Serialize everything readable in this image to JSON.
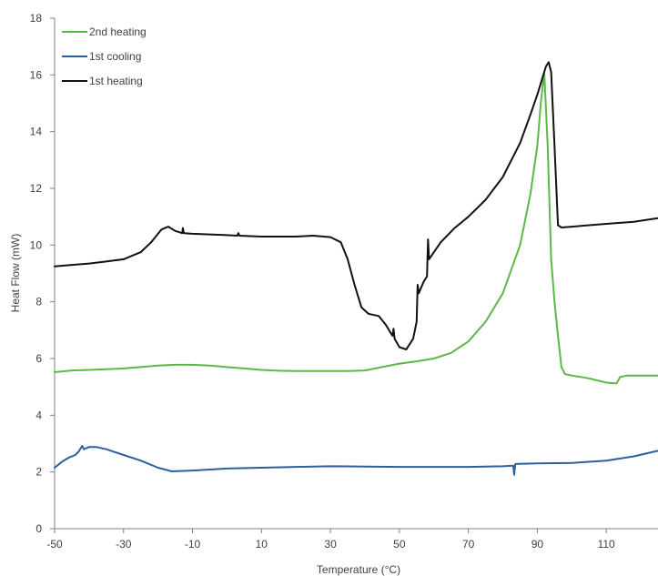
{
  "chart_data": {
    "type": "line",
    "xlabel": "Temperature (°C)",
    "ylabel": "Heat Flow (mW)",
    "xlim": [
      -50,
      125
    ],
    "ylim": [
      0,
      18
    ],
    "x_ticks": [
      -50,
      -30,
      -10,
      10,
      30,
      50,
      70,
      90,
      110
    ],
    "y_ticks": [
      0,
      2,
      4,
      6,
      8,
      10,
      12,
      14,
      16,
      18
    ],
    "grid": false,
    "legend_position": "top-left",
    "series": [
      {
        "name": "2nd heating",
        "color": "#5cb848",
        "points": [
          [
            -50,
            5.52
          ],
          [
            -45,
            5.58
          ],
          [
            -40,
            5.6
          ],
          [
            -35,
            5.62
          ],
          [
            -30,
            5.65
          ],
          [
            -25,
            5.7
          ],
          [
            -20,
            5.75
          ],
          [
            -15,
            5.78
          ],
          [
            -10,
            5.78
          ],
          [
            -5,
            5.75
          ],
          [
            0,
            5.7
          ],
          [
            5,
            5.65
          ],
          [
            10,
            5.6
          ],
          [
            15,
            5.57
          ],
          [
            20,
            5.56
          ],
          [
            25,
            5.56
          ],
          [
            30,
            5.56
          ],
          [
            35,
            5.56
          ],
          [
            40,
            5.58
          ],
          [
            45,
            5.7
          ],
          [
            50,
            5.82
          ],
          [
            55,
            5.9
          ],
          [
            60,
            6.0
          ],
          [
            65,
            6.2
          ],
          [
            70,
            6.6
          ],
          [
            75,
            7.3
          ],
          [
            80,
            8.3
          ],
          [
            85,
            10.0
          ],
          [
            88,
            11.8
          ],
          [
            90,
            13.5
          ],
          [
            91,
            15.0
          ],
          [
            92,
            16.1
          ],
          [
            93,
            13.5
          ],
          [
            94,
            9.5
          ],
          [
            95,
            8.0
          ],
          [
            96,
            6.8
          ],
          [
            97,
            5.7
          ],
          [
            98,
            5.45
          ],
          [
            100,
            5.4
          ],
          [
            105,
            5.3
          ],
          [
            110,
            5.15
          ],
          [
            113,
            5.12
          ],
          [
            114,
            5.35
          ],
          [
            116,
            5.4
          ],
          [
            120,
            5.4
          ],
          [
            125,
            5.4
          ]
        ]
      },
      {
        "name": "1st cooling",
        "color": "#2e5e9e",
        "points": [
          [
            -50,
            2.15
          ],
          [
            -48,
            2.35
          ],
          [
            -46,
            2.5
          ],
          [
            -44,
            2.6
          ],
          [
            -43,
            2.72
          ],
          [
            -42,
            2.92
          ],
          [
            -41.5,
            2.8
          ],
          [
            -40,
            2.88
          ],
          [
            -38,
            2.88
          ],
          [
            -35,
            2.8
          ],
          [
            -30,
            2.6
          ],
          [
            -25,
            2.4
          ],
          [
            -20,
            2.15
          ],
          [
            -16,
            2.02
          ],
          [
            -10,
            2.05
          ],
          [
            0,
            2.12
          ],
          [
            10,
            2.15
          ],
          [
            20,
            2.18
          ],
          [
            30,
            2.2
          ],
          [
            40,
            2.19
          ],
          [
            50,
            2.18
          ],
          [
            60,
            2.18
          ],
          [
            70,
            2.18
          ],
          [
            80,
            2.2
          ],
          [
            83,
            2.22
          ],
          [
            83.3,
            1.9
          ],
          [
            83.6,
            2.28
          ],
          [
            90,
            2.3
          ],
          [
            100,
            2.32
          ],
          [
            110,
            2.4
          ],
          [
            118,
            2.55
          ],
          [
            125,
            2.75
          ]
        ]
      },
      {
        "name": "1st heating",
        "color": "#111111",
        "points": [
          [
            -50,
            9.25
          ],
          [
            -45,
            9.3
          ],
          [
            -40,
            9.35
          ],
          [
            -35,
            9.42
          ],
          [
            -30,
            9.5
          ],
          [
            -25,
            9.75
          ],
          [
            -22,
            10.1
          ],
          [
            -19,
            10.55
          ],
          [
            -17,
            10.65
          ],
          [
            -15,
            10.5
          ],
          [
            -13,
            10.42
          ],
          [
            -12.8,
            10.6
          ],
          [
            -12.5,
            10.42
          ],
          [
            -10,
            10.4
          ],
          [
            0,
            10.35
          ],
          [
            3,
            10.33
          ],
          [
            3.3,
            10.42
          ],
          [
            3.6,
            10.33
          ],
          [
            10,
            10.3
          ],
          [
            20,
            10.3
          ],
          [
            25,
            10.33
          ],
          [
            30,
            10.28
          ],
          [
            33,
            10.1
          ],
          [
            35,
            9.5
          ],
          [
            37,
            8.6
          ],
          [
            39,
            7.8
          ],
          [
            41,
            7.58
          ],
          [
            44,
            7.5
          ],
          [
            46,
            7.2
          ],
          [
            48,
            6.8
          ],
          [
            48.3,
            7.05
          ],
          [
            48.6,
            6.7
          ],
          [
            50,
            6.4
          ],
          [
            52,
            6.32
          ],
          [
            54,
            6.7
          ],
          [
            55,
            7.3
          ],
          [
            55.3,
            8.6
          ],
          [
            55.6,
            8.3
          ],
          [
            57,
            8.7
          ],
          [
            58,
            8.9
          ],
          [
            58.3,
            10.2
          ],
          [
            58.6,
            9.5
          ],
          [
            62,
            10.1
          ],
          [
            66,
            10.6
          ],
          [
            70,
            11.0
          ],
          [
            75,
            11.6
          ],
          [
            80,
            12.4
          ],
          [
            85,
            13.6
          ],
          [
            88,
            14.6
          ],
          [
            90,
            15.3
          ],
          [
            91.5,
            15.9
          ],
          [
            92.5,
            16.3
          ],
          [
            93.3,
            16.45
          ],
          [
            94,
            16.1
          ],
          [
            95,
            13.5
          ],
          [
            96,
            10.7
          ],
          [
            97,
            10.62
          ],
          [
            100,
            10.65
          ],
          [
            110,
            10.75
          ],
          [
            118,
            10.82
          ],
          [
            125,
            10.95
          ]
        ]
      }
    ]
  }
}
